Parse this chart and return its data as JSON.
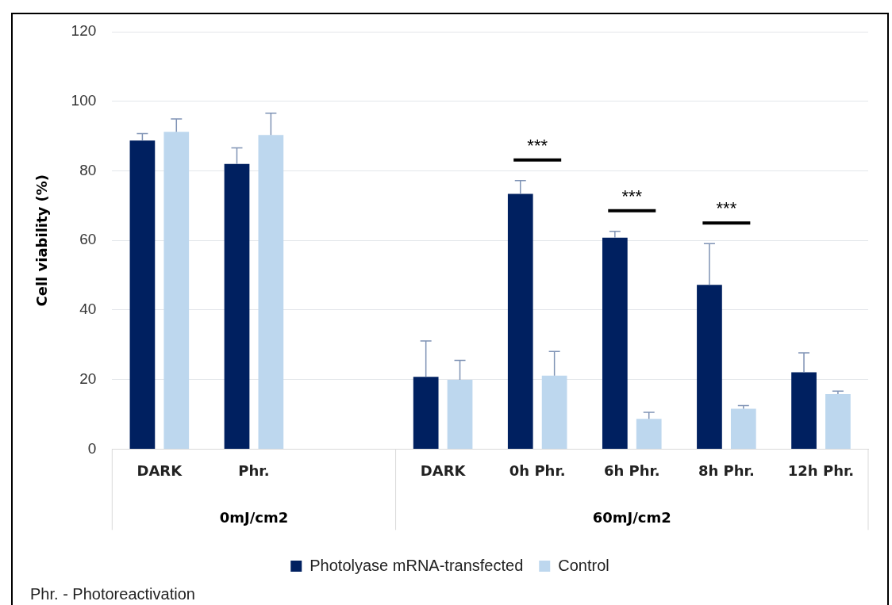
{
  "chart_data": {
    "type": "bar",
    "ylabel": "Cell viability (%)",
    "categories": [
      "DARK",
      "Phr.",
      null,
      "DARK",
      "0h Phr.",
      "6h Phr.",
      "8h Phr.",
      "12h Phr."
    ],
    "series": [
      {
        "name": "Photolyase mRNA-transfected",
        "color": "#002060",
        "values": [
          88.7,
          82.0,
          null,
          20.8,
          73.4,
          60.8,
          47.2,
          22.1
        ],
        "errors": [
          [
            88.7,
            90.7
          ],
          [
            82.0,
            86.6
          ],
          null,
          [
            20.8,
            31.1
          ],
          [
            73.4,
            77.2
          ],
          [
            60.8,
            62.6
          ],
          [
            47.2,
            59.1
          ],
          [
            22.1,
            27.7
          ]
        ]
      },
      {
        "name": "Control",
        "color": "#bdd7ee",
        "values": [
          91.2,
          90.3,
          null,
          19.9,
          21.1,
          8.7,
          11.6,
          15.8
        ],
        "errors": [
          [
            91.2,
            94.9
          ],
          [
            90.3,
            96.6
          ],
          null,
          [
            19.9,
            25.5
          ],
          [
            21.1,
            28.1
          ],
          [
            8.7,
            10.6
          ],
          [
            11.6,
            12.5
          ],
          [
            15.8,
            16.7
          ]
        ]
      }
    ],
    "ylim": [
      0,
      120
    ],
    "yticks": [
      0,
      20,
      40,
      60,
      80,
      100,
      120
    ],
    "grid": "y",
    "legend": "bottom",
    "annotations": [
      "***",
      "***",
      "***",
      "0mJ/cm2",
      "60mJ/cm2",
      "Phr. - Photoreactivation"
    ]
  }
}
